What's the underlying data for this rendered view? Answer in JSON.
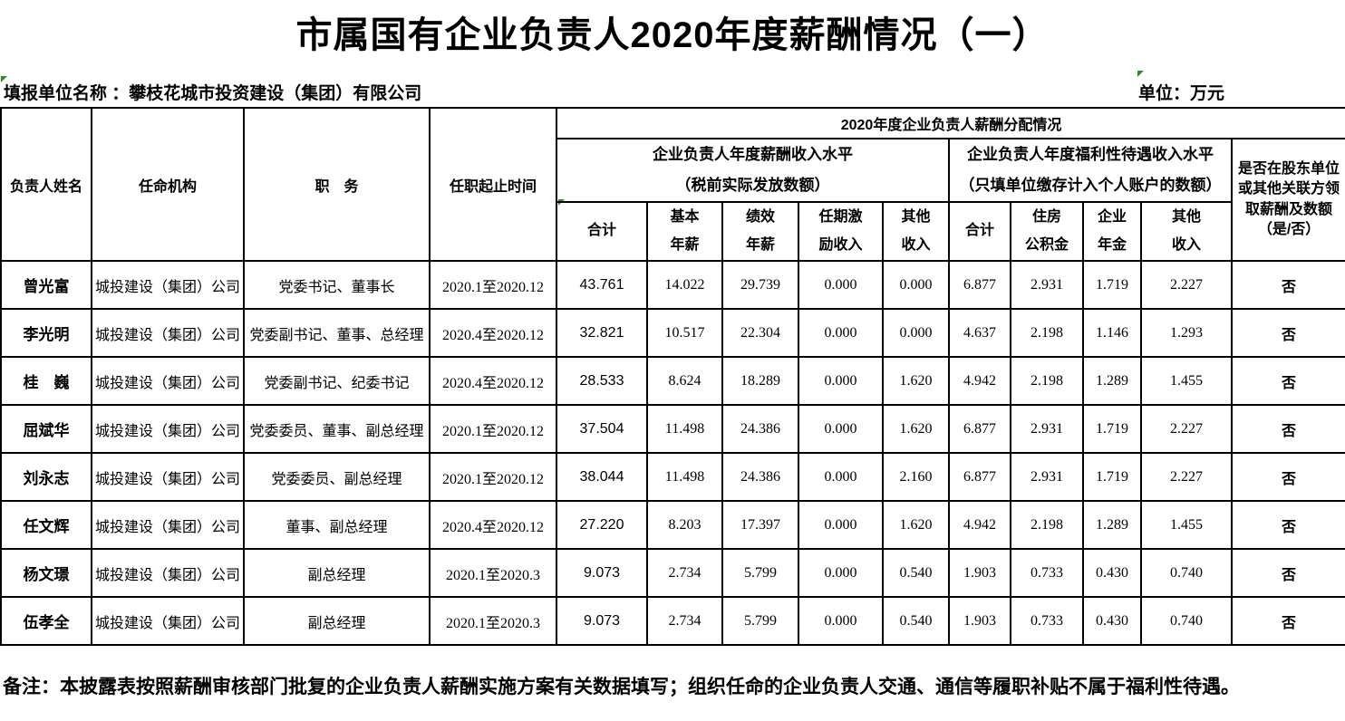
{
  "colors": {
    "marker_green": "#2e8b2e",
    "border": "#000000",
    "text": "#000000"
  },
  "page": {
    "title": "市属国有企业负责人2020年度薪酬情况（一）",
    "reporting_unit_label": "填报单位名称 ：",
    "reporting_unit_value": "攀枝花城市投资建设（集团）有限公司",
    "unit_label": "单位：",
    "unit_value": "万元",
    "note": "备注：本披露表按照薪酬审核部门批复的企业负责人薪酬实施方案有关数据填写；组织任命的企业负责人交通、通信等履职补贴不属于福利性待遇。"
  },
  "table": {
    "header": {
      "col_name": "负责人姓名",
      "col_org": "任命机构",
      "col_position": "职　务",
      "col_term": "任职起止时间",
      "group_top": "2020年度企业负责人薪酬分配情况",
      "group_salary_line1": "企业负责人年度薪酬收入水平",
      "group_salary_line2": "（税前实际发放数额）",
      "group_welfare_line1": "企业负责人年度福利性待遇收入水平",
      "group_welfare_line2": "（只填单位缴存计入个人账户的数额）",
      "col_shareholder": "是否在股东单位或其他关联方领取薪酬及数额（是/否）",
      "salary_total": {
        "l1": "合计",
        "l2": ""
      },
      "salary_base": {
        "l1": "基本",
        "l2": "年薪"
      },
      "salary_perf": {
        "l1": "绩效",
        "l2": "年薪"
      },
      "salary_tenure": {
        "l1": "任期激",
        "l2": "励收入"
      },
      "salary_other": {
        "l1": "其他",
        "l2": "收入"
      },
      "welfare_total": {
        "l1": "合计",
        "l2": ""
      },
      "welfare_housing": {
        "l1": "住房",
        "l2": "公积金"
      },
      "welfare_annuity": {
        "l1": "企业",
        "l2": "年金"
      },
      "welfare_other": {
        "l1": "其他",
        "l2": "收入"
      }
    },
    "rows": [
      {
        "name": "曾光富",
        "org": "城投建设（集团）公司",
        "position": "党委书记、董事长",
        "term": "2020.1至2020.12",
        "salary_total": "43.761",
        "salary_base": "14.022",
        "salary_perf": "29.739",
        "salary_tenure": "0.000",
        "salary_other": "0.000",
        "welfare_total": "6.877",
        "welfare_housing": "2.931",
        "welfare_annuity": "1.719",
        "welfare_other": "2.227",
        "shareholder": "否"
      },
      {
        "name": "李光明",
        "org": "城投建设（集团）公司",
        "position": "党委副书记、董事、总经理",
        "term": "2020.4至2020.12",
        "salary_total": "32.821",
        "salary_base": "10.517",
        "salary_perf": "22.304",
        "salary_tenure": "0.000",
        "salary_other": "0.000",
        "welfare_total": "4.637",
        "welfare_housing": "2.198",
        "welfare_annuity": "1.146",
        "welfare_other": "1.293",
        "shareholder": "否"
      },
      {
        "name": "桂　巍",
        "org": "城投建设（集团）公司",
        "position": "党委副书记、纪委书记",
        "term": "2020.4至2020.12",
        "salary_total": "28.533",
        "salary_base": "8.624",
        "salary_perf": "18.289",
        "salary_tenure": "0.000",
        "salary_other": "1.620",
        "welfare_total": "4.942",
        "welfare_housing": "2.198",
        "welfare_annuity": "1.289",
        "welfare_other": "1.455",
        "shareholder": "否"
      },
      {
        "name": "屈斌华",
        "org": "城投建设（集团）公司",
        "position": "党委委员、董事、副总经理",
        "term": "2020.1至2020.12",
        "salary_total": "37.504",
        "salary_base": "11.498",
        "salary_perf": "24.386",
        "salary_tenure": "0.000",
        "salary_other": "1.620",
        "welfare_total": "6.877",
        "welfare_housing": "2.931",
        "welfare_annuity": "1.719",
        "welfare_other": "2.227",
        "shareholder": "否"
      },
      {
        "name": "刘永志",
        "org": "城投建设（集团）公司",
        "position": "党委委员、副总经理",
        "term": "2020.1至2020.12",
        "salary_total": "38.044",
        "salary_base": "11.498",
        "salary_perf": "24.386",
        "salary_tenure": "0.000",
        "salary_other": "2.160",
        "welfare_total": "6.877",
        "welfare_housing": "2.931",
        "welfare_annuity": "1.719",
        "welfare_other": "2.227",
        "shareholder": "否"
      },
      {
        "name": "任文辉",
        "org": "城投建设（集团）公司",
        "position": "董事、副总经理",
        "term": "2020.4至2020.12",
        "salary_total": "27.220",
        "salary_base": "8.203",
        "salary_perf": "17.397",
        "salary_tenure": "0.000",
        "salary_other": "1.620",
        "welfare_total": "4.942",
        "welfare_housing": "2.198",
        "welfare_annuity": "1.289",
        "welfare_other": "1.455",
        "shareholder": "否"
      },
      {
        "name": "杨文璟",
        "org": "城投建设（集团）公司",
        "position": "副总经理",
        "term": "2020.1至2020.3",
        "salary_total": "9.073",
        "salary_base": "2.734",
        "salary_perf": "5.799",
        "salary_tenure": "0.000",
        "salary_other": "0.540",
        "welfare_total": "1.903",
        "welfare_housing": "0.733",
        "welfare_annuity": "0.430",
        "welfare_other": "0.740",
        "shareholder": "否"
      },
      {
        "name": "伍孝全",
        "org": "城投建设（集团）公司",
        "position": "副总经理",
        "term": "2020.1至2020.3",
        "salary_total": "9.073",
        "salary_base": "2.734",
        "salary_perf": "5.799",
        "salary_tenure": "0.000",
        "salary_other": "0.540",
        "welfare_total": "1.903",
        "welfare_housing": "0.733",
        "welfare_annuity": "0.430",
        "welfare_other": "0.740",
        "shareholder": "否"
      }
    ]
  }
}
